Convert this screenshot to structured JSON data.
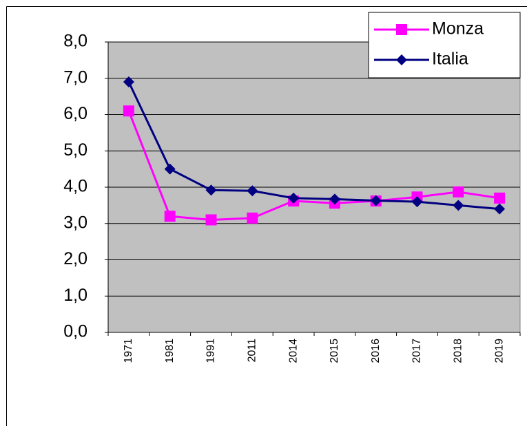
{
  "chart_data": {
    "type": "line",
    "categories": [
      "1971",
      "1981",
      "1991",
      "2011",
      "2014",
      "2015",
      "2016",
      "2017",
      "2018",
      "2019"
    ],
    "series": [
      {
        "name": "Monza",
        "color": "#ff00ff",
        "marker": "square",
        "values": [
          6.1,
          3.2,
          3.1,
          3.15,
          3.62,
          3.56,
          3.62,
          3.73,
          3.87,
          3.7
        ]
      },
      {
        "name": "Italia",
        "color": "#000080",
        "marker": "diamond",
        "values": [
          6.9,
          4.5,
          3.92,
          3.9,
          3.7,
          3.67,
          3.63,
          3.6,
          3.5,
          3.4
        ]
      }
    ],
    "ylim": [
      0,
      8
    ],
    "yticks": [
      {
        "value": 0,
        "label": "0,0"
      },
      {
        "value": 1,
        "label": "1,0"
      },
      {
        "value": 2,
        "label": "2,0"
      },
      {
        "value": 3,
        "label": "3,0"
      },
      {
        "value": 4,
        "label": "4,0"
      },
      {
        "value": 5,
        "label": "5,0"
      },
      {
        "value": 6,
        "label": "6,0"
      },
      {
        "value": 7,
        "label": "7,0"
      },
      {
        "value": 8,
        "label": "8,0"
      }
    ],
    "grid": true,
    "legend": "upper right",
    "plot_background": "#c0c0c0"
  }
}
